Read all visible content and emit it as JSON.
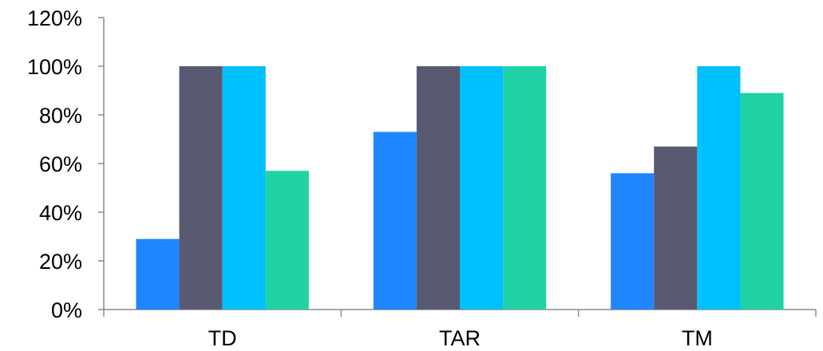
{
  "chart_data": {
    "type": "bar",
    "title": "",
    "xlabel": "",
    "ylabel": "",
    "categories": [
      "TD",
      "TAR",
      "TM"
    ],
    "ylim": [
      0,
      120
    ],
    "y_ticks": [
      "0%",
      "20%",
      "40%",
      "60%",
      "80%",
      "100%",
      "120%"
    ],
    "grid": false,
    "legend": "none",
    "series": [
      {
        "values": [
          29,
          73,
          56
        ],
        "color": "#1f86ff"
      },
      {
        "values": [
          100,
          100,
          67
        ],
        "color": "#585a72"
      },
      {
        "values": [
          100,
          100,
          100
        ],
        "color": "#00bfff"
      },
      {
        "values": [
          57,
          100,
          89
        ],
        "color": "#21d1a6"
      }
    ]
  }
}
